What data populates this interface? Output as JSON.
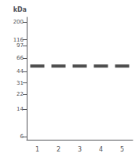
{
  "chart_data": {
    "type": "scatter",
    "y_label": "kDa",
    "categories": [
      "1",
      "2",
      "3",
      "4",
      "5"
    ],
    "values": [
      52,
      52,
      52,
      52,
      52
    ],
    "color": "#222222",
    "marker": "rect",
    "log": "y",
    "ylim": [
      5.5,
      230
    ],
    "yticks": [
      200,
      116,
      97,
      66,
      44,
      31,
      22,
      14,
      6
    ],
    "grid": false
  }
}
